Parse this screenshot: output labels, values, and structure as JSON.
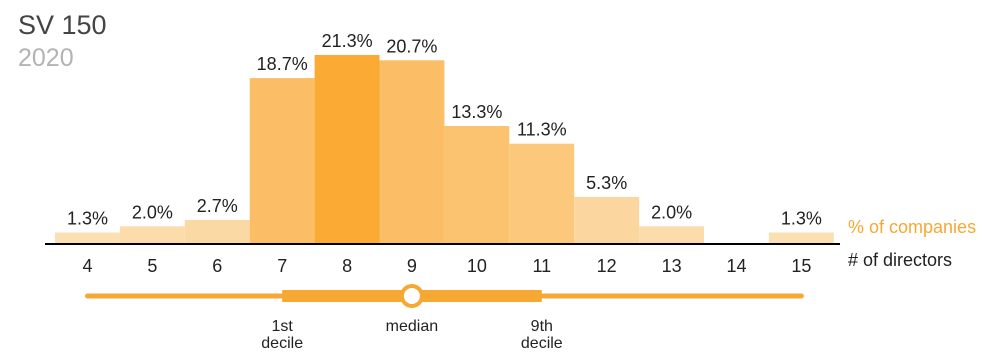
{
  "header": {
    "title": "SV 150",
    "subtitle": "2020"
  },
  "chart_data": {
    "type": "bar",
    "title": "SV 150",
    "subtitle": "2020",
    "categories": [
      "4",
      "5",
      "6",
      "7",
      "8",
      "9",
      "10",
      "11",
      "12",
      "13",
      "14",
      "15"
    ],
    "values": [
      1.3,
      2.0,
      2.7,
      18.7,
      21.3,
      20.7,
      13.3,
      11.3,
      5.3,
      2.0,
      0,
      1.3
    ],
    "value_labels": [
      "1.3%",
      "2.0%",
      "2.7%",
      "18.7%",
      "21.3%",
      "20.7%",
      "13.3%",
      "11.3%",
      "5.3%",
      "2.0%",
      "",
      "1.3%"
    ],
    "ylabel": "% of companies",
    "xlabel": "# of directors",
    "ylim": [
      0,
      21.3
    ],
    "grid": false,
    "distribution": {
      "range": [
        4,
        15
      ],
      "decile_1": 7,
      "median": 9,
      "decile_9": 11,
      "labels": {
        "decile_1": [
          "1st",
          "decile"
        ],
        "median": "median",
        "decile_9": [
          "9th",
          "decile"
        ]
      }
    },
    "colors": {
      "ylabel": "#f7a833",
      "xlabel": "#222222",
      "bars": [
        "#fbe0b3",
        "#fbdcaa",
        "#fbd9a4",
        "#fbbd66",
        "#fbaa33",
        "#fbbd66",
        "#fbc270",
        "#fbc87c",
        "#fbd69e",
        "#fbdcaa",
        "#fbe0b3",
        "#fbe0b3"
      ],
      "accent": "#f7a833",
      "axis": "#000000"
    }
  }
}
